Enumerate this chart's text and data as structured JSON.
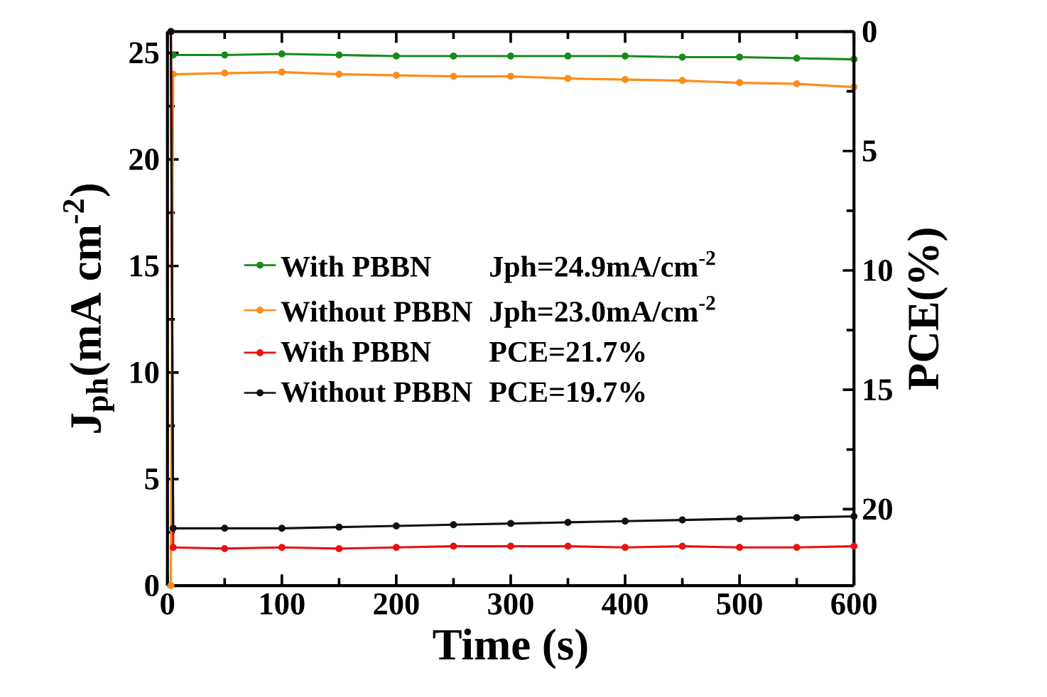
{
  "chart_data": {
    "type": "line",
    "xlabel": "Time (s)",
    "ylabel": "J$_{ph}$(mA cm$^{-2}$)",
    "y2label": "PCE(%)",
    "x": [
      3,
      5,
      50,
      100,
      150,
      200,
      250,
      300,
      350,
      400,
      450,
      500,
      550,
      600
    ],
    "series": [
      {
        "name": "With PBBN",
        "color": "#1a8a1a",
        "values": [
          null,
          24.9,
          24.9,
          24.95,
          24.9,
          24.85,
          24.85,
          24.85,
          24.85,
          24.85,
          24.8,
          24.8,
          24.75,
          24.7
        ]
      },
      {
        "name": "Without PBBN",
        "color": "#ff8c1a",
        "values": [
          0,
          24.0,
          24.05,
          24.1,
          24.0,
          23.95,
          23.9,
          23.9,
          23.8,
          23.75,
          23.7,
          23.6,
          23.55,
          23.4
        ]
      },
      {
        "name": "With PBBN",
        "color": "#ee1111",
        "axis": "y2",
        "values": [
          0,
          21.6,
          21.65,
          21.6,
          21.65,
          21.6,
          21.55,
          21.55,
          21.55,
          21.6,
          21.55,
          21.6,
          21.6,
          21.55
        ]
      },
      {
        "name": "Without PBBN",
        "color": "#111111",
        "axis": "y2",
        "values": [
          0,
          20.8,
          20.8,
          20.8,
          20.75,
          20.7,
          20.65,
          20.6,
          20.55,
          20.5,
          20.45,
          20.4,
          20.35,
          20.3
        ]
      }
    ],
    "annotations": [
      "Jph=24.9mA/cm$^{-2}$",
      "Jph=23.0mA/cm$^{-2}$",
      "PCE=21.7%",
      "PCE=19.7%"
    ],
    "xlim": [
      0,
      600
    ],
    "xticks": [
      0,
      100,
      200,
      300,
      400,
      500,
      600
    ],
    "ylim": [
      0,
      26
    ],
    "yticks": [
      0,
      5,
      10,
      15,
      20,
      25
    ],
    "y2lim": [
      23.2,
      0
    ],
    "y2ticks": [
      0,
      5,
      10,
      15,
      20
    ],
    "legend": "left",
    "marker": "circle",
    "line_style": "solid",
    "grid": false
  }
}
